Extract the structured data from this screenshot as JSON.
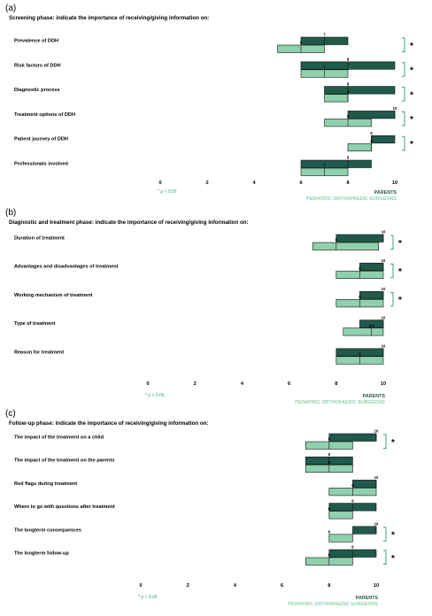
{
  "colors": {
    "parents": "#1f5a4b",
    "surgeons": "#8fd1ad",
    "bracket": "#3aa37d",
    "stroke": "#111111"
  },
  "chart_data": [
    {
      "type": "bar",
      "panel": "(a)",
      "title": "Screening phase: indicate the importance of receiving/giving information on:",
      "xticks": [
        0,
        2,
        4,
        6,
        8,
        10
      ],
      "xlim": [
        0,
        10
      ],
      "legend": [
        "PARENTS",
        "PEDIATRIC ORTHOPAEDIC SURGEONS"
      ],
      "note": "* p < 0.05",
      "items": [
        {
          "label": "Prevalence of DDH",
          "parents": {
            "min": 6,
            "max": 8,
            "median": 7
          },
          "surgeons": {
            "min": 5,
            "max": 7,
            "median": 6
          },
          "sig": "*"
        },
        {
          "label": "Risk factors of DDH",
          "parents": {
            "min": 6,
            "max": 10,
            "median": 8
          },
          "surgeons": {
            "min": 6,
            "max": 8,
            "median": 7
          },
          "sig": "*"
        },
        {
          "label": "Diagnostic process",
          "parents": {
            "min": 7,
            "max": 10,
            "median": 8
          },
          "surgeons": {
            "min": 7,
            "max": 8,
            "median": 8
          },
          "sig": "*"
        },
        {
          "label": "Treatment options of DDH",
          "parents": {
            "min": 8,
            "max": 10,
            "median": 10
          },
          "surgeons": {
            "min": 7,
            "max": 9,
            "median": 8
          },
          "sig": "*"
        },
        {
          "label": "Patient journey of DDH",
          "parents": {
            "min": 9,
            "max": 10,
            "median": 9
          },
          "surgeons": {
            "min": 8,
            "max": 9,
            "median": 9
          },
          "sig": "*"
        },
        {
          "label": "Professionals involved",
          "parents": {
            "min": 6,
            "max": 9,
            "median": 8
          },
          "surgeons": {
            "min": 6,
            "max": 8,
            "median": 7
          },
          "sig": ""
        }
      ]
    },
    {
      "type": "bar",
      "panel": "(b)",
      "title": "Diagnostic and treatment phase: indicate the importance of receiving/giving information on:",
      "xticks": [
        0,
        2,
        4,
        6,
        8,
        10
      ],
      "xlim": [
        0,
        10
      ],
      "legend": [
        "PARENTS",
        "PEDIATRIC ORTHOPAEDIC SURGEONS"
      ],
      "note": "* p < 0.05",
      "items": [
        {
          "label": "Duration of treatment",
          "parents": {
            "min": 8,
            "max": 10,
            "median": 10
          },
          "surgeons": {
            "min": 7,
            "max": 9.8,
            "median": 8
          },
          "sig": "*"
        },
        {
          "label": "Advantages and disadvantages of treatment",
          "parents": {
            "min": 9,
            "max": 10,
            "median": 10
          },
          "surgeons": {
            "min": 8,
            "max": 10,
            "median": 9
          },
          "sig": "*"
        },
        {
          "label": "Working mechanism of treatment",
          "parents": {
            "min": 9,
            "max": 10,
            "median": 10
          },
          "surgeons": {
            "min": 8,
            "max": 10,
            "median": 9
          },
          "sig": "*"
        },
        {
          "label": "Type of treatment",
          "parents": {
            "min": 9,
            "max": 10,
            "median": 10
          },
          "surgeons": {
            "min": 8.3,
            "max": 10,
            "median": 9.5
          },
          "sig": ""
        },
        {
          "label": "Reason for treatment",
          "parents": {
            "min": 8,
            "max": 10,
            "median": 10
          },
          "surgeons": {
            "min": 8,
            "max": 10,
            "median": 9
          },
          "sig": ""
        }
      ]
    },
    {
      "type": "bar",
      "panel": "(c)",
      "title": "Follow-up phase: indicate the importance of receiving/giving information on:",
      "xticks": [
        0,
        2,
        4,
        6,
        8,
        10
      ],
      "xlim": [
        0,
        10
      ],
      "legend": [
        "PARENTS",
        "PEDIATRIC ORTHOPAEDIC SURGEONS"
      ],
      "note": "* p < 0.05",
      "items": [
        {
          "label": "The impact of the treatment on a child",
          "parents": {
            "min": 8,
            "max": 10,
            "median": 10
          },
          "surgeons": {
            "min": 7,
            "max": 9,
            "median": 8
          },
          "sig": "*"
        },
        {
          "label": "The impact of the treatment on the parents",
          "parents": {
            "min": 7,
            "max": 9,
            "median": 8
          },
          "surgeons": {
            "min": 7,
            "max": 9,
            "median": 8
          },
          "sig": ""
        },
        {
          "label": "Red flags during treatment",
          "parents": {
            "min": 9,
            "max": 10,
            "median": 10
          },
          "surgeons": {
            "min": 8,
            "max": 10,
            "median": 9
          },
          "sig": ""
        },
        {
          "label": "Where to go with questions after treatment",
          "parents": {
            "min": 8,
            "max": 10,
            "median": 9
          },
          "surgeons": {
            "min": 8,
            "max": 9,
            "median": 8
          },
          "sig": ""
        },
        {
          "label": "The longterm consequences",
          "parents": {
            "min": 9,
            "max": 10,
            "median": 10
          },
          "surgeons": {
            "min": 8,
            "max": 9,
            "median": 8
          },
          "sig": "*"
        },
        {
          "label": "The longterm follow-up",
          "parents": {
            "min": 8,
            "max": 10,
            "median": 9
          },
          "surgeons": {
            "min": 7,
            "max": 9,
            "median": 8
          },
          "sig": "*"
        }
      ]
    }
  ]
}
